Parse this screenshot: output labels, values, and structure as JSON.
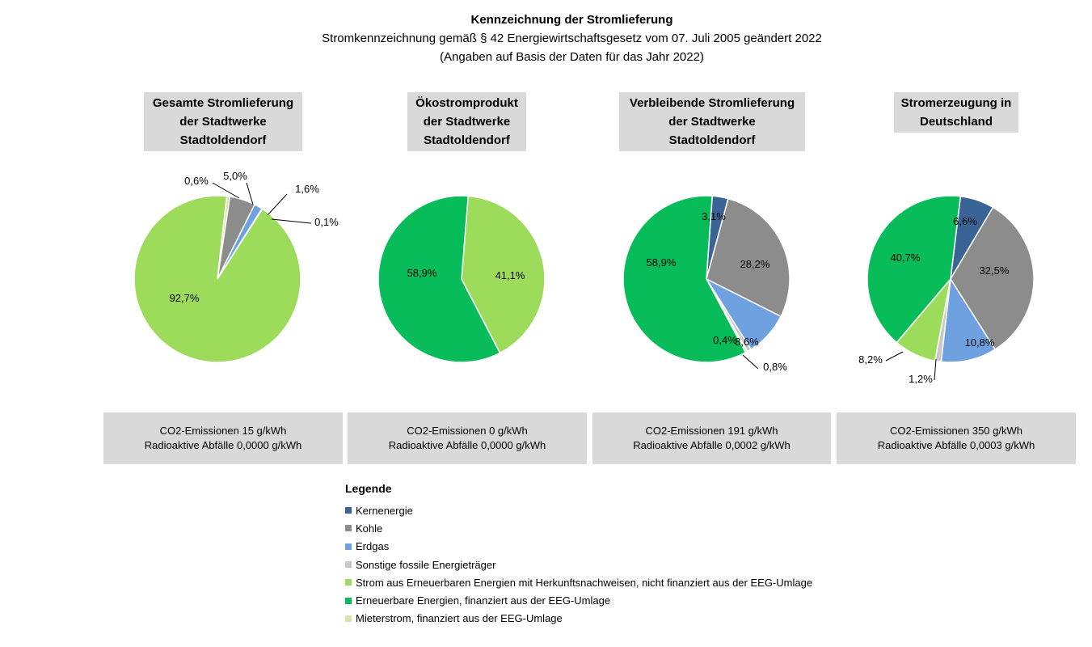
{
  "header": {
    "title": "Kennzeichnung der Stromlieferung",
    "subtitle": "Stromkennzeichnung gemäß § 42 Energiewirtschaftsgesetz vom 07. Juli 2005 geändert 2022",
    "note": "(Angaben auf Basis der Daten für das Jahr 2022)"
  },
  "colors": {
    "Kernenergie": "#3b6496",
    "Kohle": "#8c8c8c",
    "Erdgas": "#6fa0e0",
    "Sonstige": "#c8c8c8",
    "StromErneuerbar": "#9ddc5a",
    "EEG": "#08bc5a",
    "Mieterstrom": "#d4e6a8"
  },
  "chart_data": [
    {
      "type": "pie",
      "title_lines": [
        "Gesamte Stromlieferung",
        "der Stadtwerke",
        "Stadtoldendorf"
      ],
      "slices": [
        {
          "name": "Kernenergie",
          "value": 0.0,
          "label": ""
        },
        {
          "name": "Kohle",
          "value": 5.0,
          "label": "5,0%"
        },
        {
          "name": "Erdgas",
          "value": 1.6,
          "label": "1,6%"
        },
        {
          "name": "Sonstige fossile Energieträger",
          "value": 0.1,
          "label": "0,1%"
        },
        {
          "name": "Strom aus Erneuerbaren Energien mit Herkunftsnachweisen, nicht finanziert aus der EEG-Umlage",
          "value": 92.7,
          "label": "92,7%"
        },
        {
          "name": "Erneuerbare Energien, finanziert aus der EEG-Umlage",
          "value": 0.0,
          "label": ""
        },
        {
          "name": "Mieterstrom, finanziert aus der EEG-Umlage",
          "value": 0.6,
          "label": "0,6%"
        }
      ],
      "emissions": "CO2-Emissionen 15 g/kWh",
      "waste": "Radioaktive Abfälle 0,0000 g/kWh"
    },
    {
      "type": "pie",
      "title_lines": [
        "Ökostromprodukt",
        "der Stadtwerke",
        "Stadtoldendorf"
      ],
      "slices": [
        {
          "name": "Strom aus Erneuerbaren Energien mit Herkunftsnachweisen, nicht finanziert aus der EEG-Umlage",
          "value": 41.1,
          "label": "41,1%"
        },
        {
          "name": "Erneuerbare Energien, finanziert aus der EEG-Umlage",
          "value": 58.9,
          "label": "58,9%"
        }
      ],
      "emissions": "CO2-Emissionen 0 g/kWh",
      "waste": "Radioaktive Abfälle 0,0000 g/kWh"
    },
    {
      "type": "pie",
      "title_lines": [
        "Verbleibende Stromlieferung",
        "der Stadtwerke",
        "Stadtoldendorf"
      ],
      "slices": [
        {
          "name": "Kernenergie",
          "value": 3.1,
          "label": "3,1%"
        },
        {
          "name": "Kohle",
          "value": 28.2,
          "label": "28,2%"
        },
        {
          "name": "Erdgas",
          "value": 8.6,
          "label": "8,6%"
        },
        {
          "name": "Sonstige fossile Energieträger",
          "value": 0.8,
          "label": "0,8%"
        },
        {
          "name": "Mieterstrom, finanziert aus der EEG-Umlage",
          "value": 0.4,
          "label": "0,4%"
        },
        {
          "name": "Erneuerbare Energien, finanziert aus der EEG-Umlage",
          "value": 58.9,
          "label": "58,9%"
        }
      ],
      "emissions": "CO2-Emissionen 191 g/kWh",
      "waste": "Radioaktive Abfälle 0,0002 g/kWh"
    },
    {
      "type": "pie",
      "title_lines": [
        "Stromerzeugung in",
        "Deutschland"
      ],
      "slices": [
        {
          "name": "Kernenergie",
          "value": 6.6,
          "label": "6,6%"
        },
        {
          "name": "Kohle",
          "value": 32.5,
          "label": "32,5%"
        },
        {
          "name": "Erdgas",
          "value": 10.8,
          "label": "10,8%"
        },
        {
          "name": "Sonstige fossile Energieträger",
          "value": 1.2,
          "label": "1,2%"
        },
        {
          "name": "Strom aus Erneuerbaren Energien mit Herkunftsnachweisen, nicht finanziert aus der EEG-Umlage",
          "value": 8.2,
          "label": "8,2%"
        },
        {
          "name": "Erneuerbare Energien, finanziert aus der EEG-Umlage",
          "value": 40.7,
          "label": "40,7%"
        }
      ],
      "emissions": "CO2-Emissionen 350 g/kWh",
      "waste": "Radioaktive Abfälle 0,0003 g/kWh"
    }
  ],
  "legend": {
    "title": "Legende",
    "items": [
      {
        "label": "Kernenergie",
        "color": "#3b6496"
      },
      {
        "label": "Kohle",
        "color": "#8c8c8c"
      },
      {
        "label": "Erdgas",
        "color": "#6fa0e0"
      },
      {
        "label": "Sonstige fossile Energieträger",
        "color": "#c8c8c8"
      },
      {
        "label": "Strom aus Erneuerbaren Energien mit Herkunftsnachweisen, nicht finanziert aus der EEG-Umlage",
        "color": "#9ddc5a"
      },
      {
        "label": "Erneuerbare Energien, finanziert aus der EEG-Umlage",
        "color": "#08bc5a"
      },
      {
        "label": "Mieterstrom, finanziert aus der EEG-Umlage",
        "color": "#d4e6a8"
      }
    ]
  }
}
